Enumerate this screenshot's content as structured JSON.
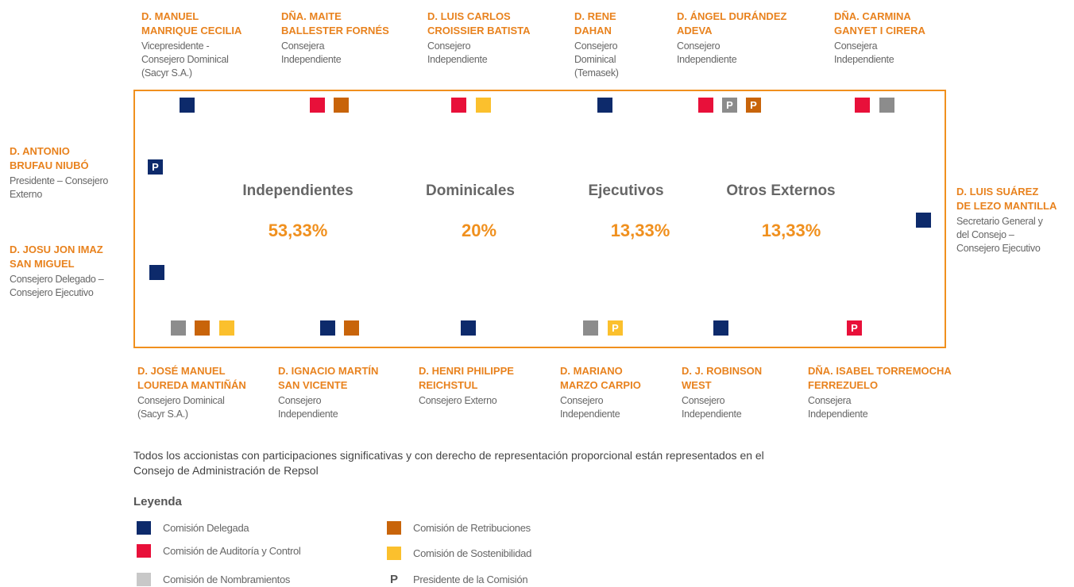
{
  "members_top": [
    {
      "name": [
        "D. MANUEL",
        "MANRIQUE CECILIA"
      ],
      "role": [
        "Vicepresidente -",
        "Consejero Dominical",
        "(Sacyr S.A.)"
      ]
    },
    {
      "name": [
        "DÑA. MAITE",
        "BALLESTER FORNÉS"
      ],
      "role": [
        "Consejera",
        "Independiente"
      ]
    },
    {
      "name": [
        "D. LUIS CARLOS",
        "CROISSIER BATISTA"
      ],
      "role": [
        "Consejero",
        "Independiente"
      ]
    },
    {
      "name": [
        "D. RENE",
        "DAHAN"
      ],
      "role": [
        "Consejero",
        "Dominical",
        "(Temasek)"
      ]
    },
    {
      "name": [
        "D. ÁNGEL DURÁNDEZ",
        "ADEVA"
      ],
      "role": [
        "Consejero",
        "Independiente"
      ]
    },
    {
      "name": [
        "DÑA. CARMINA",
        "GANYET I CIRERA"
      ],
      "role": [
        "Consejera",
        "Independiente"
      ]
    }
  ],
  "members_left": [
    {
      "name": [
        "D. ANTONIO",
        "BRUFAU NIUBÓ"
      ],
      "role": [
        "Presidente – Consejero",
        "Externo"
      ]
    },
    {
      "name": [
        "D. JOSU JON IMAZ",
        "SAN MIGUEL"
      ],
      "role": [
        "Consejero Delegado –",
        "Consejero Ejecutivo"
      ]
    }
  ],
  "members_right": [
    {
      "name": [
        "D. LUIS SUÁREZ",
        "DE LEZO MANTILLA"
      ],
      "role": [
        "Secretario General y",
        "del Consejo –",
        "Consejero Ejecutivo"
      ]
    }
  ],
  "members_bottom": [
    {
      "name": [
        "D. JOSÉ MANUEL",
        "LOUREDA MANTIÑÁN"
      ],
      "role": [
        "Consejero Dominical",
        "(Sacyr S.A.)"
      ]
    },
    {
      "name": [
        "D. IGNACIO MARTÍN",
        "SAN VICENTE"
      ],
      "role": [
        "Consejero",
        "Independiente"
      ]
    },
    {
      "name": [
        "D. HENRI PHILIPPE",
        "REICHSTUL"
      ],
      "role": [
        "Consejero Externo"
      ]
    },
    {
      "name": [
        "D. MARIANO",
        "MARZO CARPIO"
      ],
      "role": [
        "Consejero",
        "Independiente"
      ]
    },
    {
      "name": [
        "D. J. ROBINSON",
        "WEST"
      ],
      "role": [
        "Consejero",
        "Independiente"
      ]
    },
    {
      "name": [
        "DÑA. ISABEL TORREMOCHA",
        "FERREZUELO"
      ],
      "role": [
        "Consejera",
        "Independiente"
      ]
    }
  ],
  "stats": [
    {
      "label": "Independientes",
      "value": "53,33%"
    },
    {
      "label": "Dominicales",
      "value": "20%"
    },
    {
      "label": "Ejecutivos",
      "value": "13,33%"
    },
    {
      "label": "Otros Externos",
      "value": "13,33%"
    }
  ],
  "note": [
    "Todos los accionistas con participaciones significativas y con derecho de representación proporcional están representados en el",
    "Consejo de Administración de Repsol"
  ],
  "legend": {
    "title": "Leyenda",
    "items": [
      {
        "label": "Comisión Delegada",
        "color": "#0d2a6b"
      },
      {
        "label": "Comisión de Auditoría y Control",
        "color": "#e8103a"
      },
      {
        "label": "Comisión de Nombramientos",
        "color": "#8c8c8c"
      },
      {
        "label": "Comisión de Retribuciones",
        "color": "#c8640a"
      },
      {
        "label": "Comisión de Sostenibilidad",
        "color": "#fbc02d"
      }
    ],
    "president": {
      "symbol": "P",
      "label": "Presidente de la Comisión"
    }
  }
}
